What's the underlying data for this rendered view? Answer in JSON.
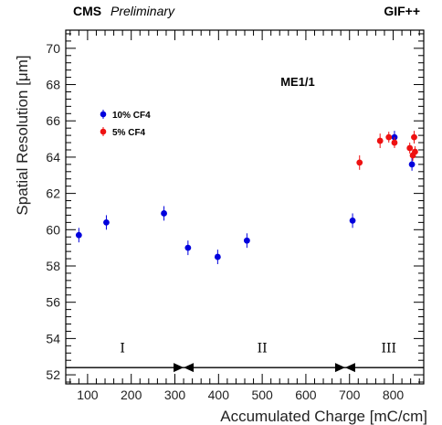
{
  "chart_data": {
    "type": "scatter",
    "header_left_bold": "CMS",
    "header_left_italic": "Preliminary",
    "header_right": "GIF++",
    "annotation": "ME1/1",
    "xlabel": "Accumulated Charge [mC/cm]",
    "ylabel": "Spatial Resolution  [μm]",
    "xlim": [
      50,
      870
    ],
    "ylim": [
      51.5,
      71
    ],
    "x_ticks": [
      100,
      200,
      300,
      400,
      500,
      600,
      700,
      800
    ],
    "y_ticks": [
      52,
      54,
      56,
      58,
      60,
      62,
      64,
      66,
      68,
      70
    ],
    "legend_position": "upper-left",
    "grid": false,
    "series": [
      {
        "name": "10% CF4",
        "color": "#0000dd",
        "points": [
          {
            "x": 80,
            "y": 59.7,
            "err": 0.4
          },
          {
            "x": 143,
            "y": 60.4,
            "err": 0.4
          },
          {
            "x": 275,
            "y": 60.9,
            "err": 0.4
          },
          {
            "x": 330,
            "y": 59.0,
            "err": 0.4
          },
          {
            "x": 398,
            "y": 58.5,
            "err": 0.4
          },
          {
            "x": 465,
            "y": 59.4,
            "err": 0.4
          },
          {
            "x": 707,
            "y": 60.5,
            "err": 0.4
          },
          {
            "x": 803,
            "y": 65.1,
            "err": 0.35
          },
          {
            "x": 843,
            "y": 63.6,
            "err": 0.35
          }
        ]
      },
      {
        "name": "5% CF4",
        "color": "#ee1111",
        "points": [
          {
            "x": 723,
            "y": 63.7,
            "err": 0.4
          },
          {
            "x": 770,
            "y": 64.9,
            "err": 0.4
          },
          {
            "x": 790,
            "y": 65.1,
            "err": 0.3
          },
          {
            "x": 803,
            "y": 64.8,
            "err": 0.3
          },
          {
            "x": 838,
            "y": 64.5,
            "err": 0.3
          },
          {
            "x": 845,
            "y": 64.1,
            "err": 0.3
          },
          {
            "x": 848,
            "y": 65.1,
            "err": 0.35
          },
          {
            "x": 850,
            "y": 64.3,
            "err": 0.3
          }
        ]
      }
    ],
    "regions": {
      "line_y": 52.4,
      "line_x": [
        50,
        870
      ],
      "arrow_markers": [
        320,
        690
      ],
      "labels": [
        {
          "text": "I",
          "x": 180,
          "y": 53.5
        },
        {
          "text": "II",
          "x": 500,
          "y": 53.5
        },
        {
          "text": "III",
          "x": 790,
          "y": 53.5
        }
      ]
    }
  }
}
